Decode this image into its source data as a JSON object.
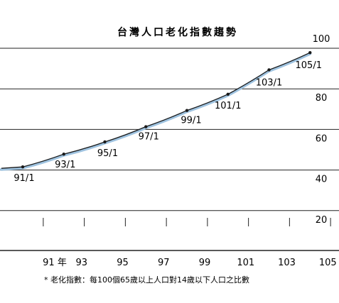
{
  "chart_data": {
    "type": "line",
    "title": "台灣人口老化指數趨勢",
    "x": [
      "91/1",
      "93/1",
      "95/1",
      "97/1",
      "99/1",
      "101/1",
      "103/1",
      "105/1"
    ],
    "series": [
      {
        "values": [
          41.2,
          47.5,
          53.5,
          61.0,
          69.0,
          77.0,
          89.0,
          97.5
        ]
      }
    ],
    "x_ticks": [
      "91 年",
      "93",
      "95",
      "97",
      "99",
      "101",
      "103",
      "105"
    ],
    "y_ticks": [
      "20",
      "40",
      "60",
      "80",
      "100"
    ],
    "ylim": [
      0,
      100
    ],
    "grid": true,
    "footnote": "* 老化指數：每100個65歲以上人口對14歲以下人口之比數",
    "colors": {
      "line": "#1a1a1a",
      "shadow": "#9fc3e0",
      "grid": "#222222"
    }
  }
}
